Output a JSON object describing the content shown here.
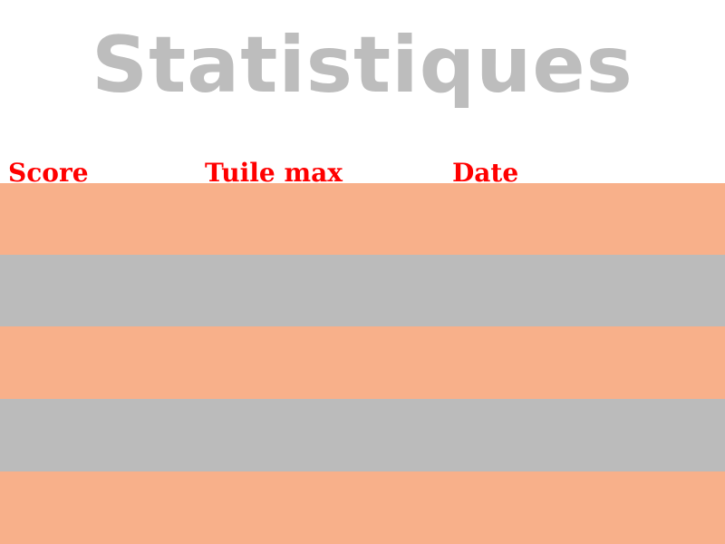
{
  "title": "Statistiques",
  "columns": {
    "score": "Score",
    "tile": "Tuile max",
    "date": "Date"
  },
  "rows": [
    {
      "score": "",
      "tile": "",
      "date": ""
    },
    {
      "score": "",
      "tile": "",
      "date": ""
    },
    {
      "score": "",
      "tile": "",
      "date": ""
    },
    {
      "score": "",
      "tile": "",
      "date": ""
    },
    {
      "score": "",
      "tile": "",
      "date": ""
    }
  ],
  "colors": {
    "title": "#bdbdbd",
    "header_text": "#ff0000",
    "row_odd": "#f8b08a",
    "row_even": "#bbbbbb",
    "background": "#ffffff"
  }
}
